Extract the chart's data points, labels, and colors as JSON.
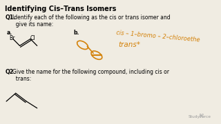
{
  "title": "Identifying Cis–Trans Isomers",
  "bg_color": "#f0ece2",
  "title_color": "#000000",
  "text_color": "#000000",
  "orange_color": "#d4820a",
  "q1_text_bold": "Q1.",
  "q1_text_rest": "  Identify each of the following as the cis or trans isomer and\n  give its name:",
  "q2_text_bold": "Q2.",
  "q2_text_rest": "  Give the name for the following compound, including cis or\n  trans:",
  "label_a": "a.",
  "label_b": "b.",
  "handwritten_line1": "cis – 1–bromo – 2–chloroethe",
  "handwritten_line2": "trans*",
  "studyforce_text": "StudyForce"
}
